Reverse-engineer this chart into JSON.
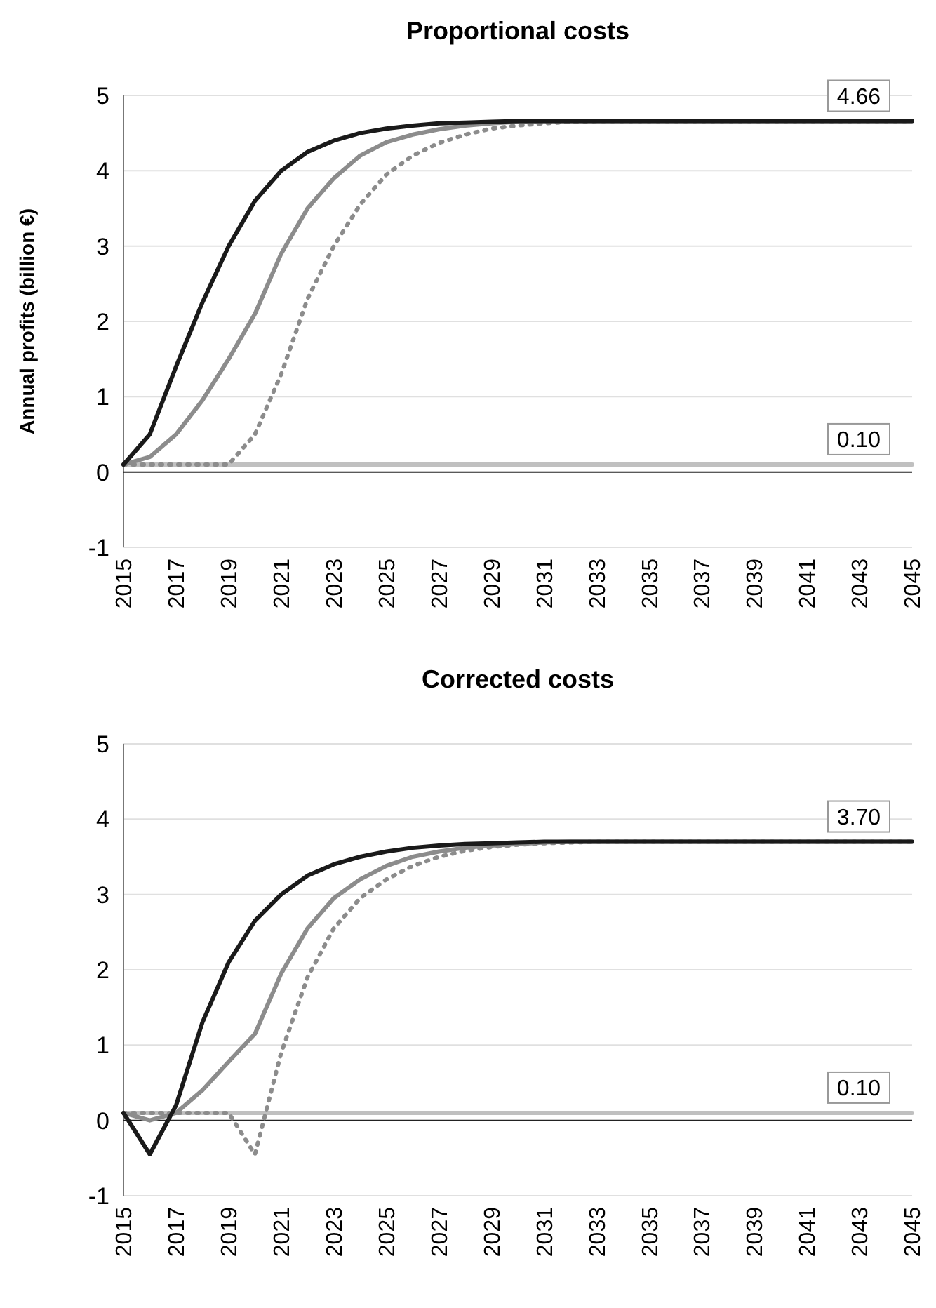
{
  "chart_data": [
    {
      "type": "line",
      "title": "Proportional costs",
      "ylabel": "Annual profits (billion €)",
      "x": [
        2015,
        2016,
        2017,
        2018,
        2019,
        2020,
        2021,
        2022,
        2023,
        2024,
        2025,
        2026,
        2027,
        2028,
        2029,
        2030,
        2031,
        2032,
        2033,
        2034,
        2035,
        2036,
        2037,
        2038,
        2039,
        2040,
        2041,
        2042,
        2043,
        2044,
        2045
      ],
      "xlim": [
        2015,
        2045
      ],
      "xticks": [
        2015,
        2017,
        2019,
        2021,
        2023,
        2025,
        2027,
        2029,
        2031,
        2033,
        2035,
        2037,
        2039,
        2041,
        2043,
        2045
      ],
      "ylim": [
        -1,
        5
      ],
      "yticks": [
        -1,
        0,
        1,
        2,
        3,
        4,
        5
      ],
      "grid": "y",
      "marker": "none",
      "series": [
        {
          "color": "#c0c0c0",
          "line_style": "solid",
          "values": [
            0.1,
            0.1,
            0.1,
            0.1,
            0.1,
            0.1,
            0.1,
            0.1,
            0.1,
            0.1,
            0.1,
            0.1,
            0.1,
            0.1,
            0.1,
            0.1,
            0.1,
            0.1,
            0.1,
            0.1,
            0.1,
            0.1,
            0.1,
            0.1,
            0.1,
            0.1,
            0.1,
            0.1,
            0.1,
            0.1,
            0.1
          ]
        },
        {
          "color": "#8c8c8c",
          "line_style": "dotted",
          "values": [
            0.1,
            0.1,
            0.1,
            0.1,
            0.1,
            0.5,
            1.3,
            2.3,
            3.0,
            3.55,
            3.95,
            4.2,
            4.37,
            4.48,
            4.56,
            4.6,
            4.63,
            4.65,
            4.66,
            4.66,
            4.66,
            4.66,
            4.66,
            4.66,
            4.66,
            4.66,
            4.66,
            4.66,
            4.66,
            4.66,
            4.66
          ]
        },
        {
          "color": "#8c8c8c",
          "line_style": "solid",
          "values": [
            0.1,
            0.2,
            0.5,
            0.95,
            1.5,
            2.1,
            2.9,
            3.5,
            3.9,
            4.2,
            4.38,
            4.48,
            4.55,
            4.6,
            4.63,
            4.65,
            4.66,
            4.66,
            4.66,
            4.66,
            4.66,
            4.66,
            4.66,
            4.66,
            4.66,
            4.66,
            4.66,
            4.66,
            4.66,
            4.66,
            4.66
          ]
        },
        {
          "color": "#1a1a1a",
          "line_style": "solid",
          "values": [
            0.1,
            0.5,
            1.4,
            2.25,
            3.0,
            3.6,
            4.0,
            4.25,
            4.4,
            4.5,
            4.56,
            4.6,
            4.63,
            4.64,
            4.65,
            4.66,
            4.66,
            4.66,
            4.66,
            4.66,
            4.66,
            4.66,
            4.66,
            4.66,
            4.66,
            4.66,
            4.66,
            4.66,
            4.66,
            4.66,
            4.66
          ]
        }
      ],
      "annotations": [
        {
          "text": "4.66",
          "y": 4.66
        },
        {
          "text": "0.10",
          "y": 0.1
        }
      ]
    },
    {
      "type": "line",
      "title": "Corrected costs",
      "x": [
        2015,
        2016,
        2017,
        2018,
        2019,
        2020,
        2021,
        2022,
        2023,
        2024,
        2025,
        2026,
        2027,
        2028,
        2029,
        2030,
        2031,
        2032,
        2033,
        2034,
        2035,
        2036,
        2037,
        2038,
        2039,
        2040,
        2041,
        2042,
        2043,
        2044,
        2045
      ],
      "xlim": [
        2015,
        2045
      ],
      "xticks": [
        2015,
        2017,
        2019,
        2021,
        2023,
        2025,
        2027,
        2029,
        2031,
        2033,
        2035,
        2037,
        2039,
        2041,
        2043,
        2045
      ],
      "ylim": [
        -1,
        5
      ],
      "yticks": [
        -1,
        0,
        1,
        2,
        3,
        4,
        5
      ],
      "grid": "y",
      "marker": "none",
      "series": [
        {
          "color": "#c0c0c0",
          "line_style": "solid",
          "values": [
            0.1,
            0.1,
            0.1,
            0.1,
            0.1,
            0.1,
            0.1,
            0.1,
            0.1,
            0.1,
            0.1,
            0.1,
            0.1,
            0.1,
            0.1,
            0.1,
            0.1,
            0.1,
            0.1,
            0.1,
            0.1,
            0.1,
            0.1,
            0.1,
            0.1,
            0.1,
            0.1,
            0.1,
            0.1,
            0.1,
            0.1
          ]
        },
        {
          "color": "#8c8c8c",
          "line_style": "dotted",
          "values": [
            0.1,
            0.1,
            0.1,
            0.1,
            0.1,
            -0.45,
            0.9,
            1.9,
            2.55,
            2.95,
            3.2,
            3.38,
            3.5,
            3.58,
            3.63,
            3.66,
            3.68,
            3.69,
            3.7,
            3.7,
            3.7,
            3.7,
            3.7,
            3.7,
            3.7,
            3.7,
            3.7,
            3.7,
            3.7,
            3.7,
            3.7
          ]
        },
        {
          "color": "#8c8c8c",
          "line_style": "solid",
          "values": [
            0.1,
            0.0,
            0.1,
            0.4,
            0.78,
            1.15,
            1.95,
            2.55,
            2.95,
            3.2,
            3.38,
            3.5,
            3.57,
            3.62,
            3.65,
            3.67,
            3.69,
            3.7,
            3.7,
            3.7,
            3.7,
            3.7,
            3.7,
            3.7,
            3.7,
            3.7,
            3.7,
            3.7,
            3.7,
            3.7,
            3.7
          ]
        },
        {
          "color": "#1a1a1a",
          "line_style": "solid",
          "values": [
            0.1,
            -0.45,
            0.2,
            1.3,
            2.1,
            2.65,
            3.0,
            3.25,
            3.4,
            3.5,
            3.57,
            3.62,
            3.65,
            3.67,
            3.68,
            3.69,
            3.7,
            3.7,
            3.7,
            3.7,
            3.7,
            3.7,
            3.7,
            3.7,
            3.7,
            3.7,
            3.7,
            3.7,
            3.7,
            3.7,
            3.7
          ]
        }
      ],
      "annotations": [
        {
          "text": "3.70",
          "y": 3.7
        },
        {
          "text": "0.10",
          "y": 0.1
        }
      ]
    }
  ]
}
